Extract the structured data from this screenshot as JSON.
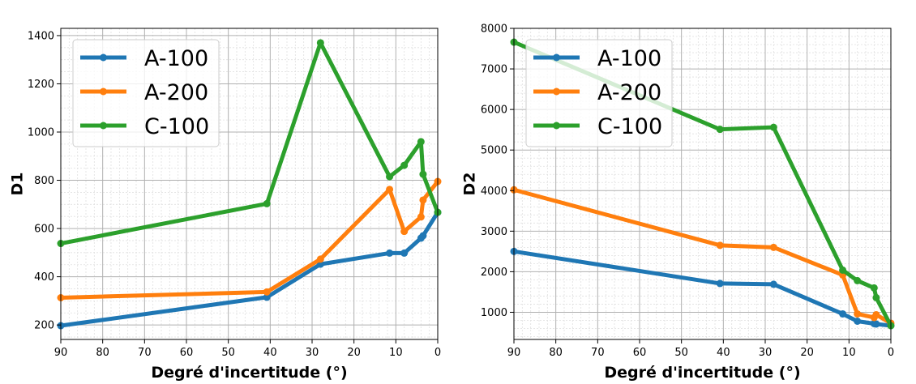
{
  "chart_data": [
    {
      "type": "line",
      "xlabel": "Degré d'incertitude (°)",
      "ylabel": "D1",
      "xlim": [
        90,
        0
      ],
      "ylim": [
        140,
        1430
      ],
      "x_inverted": true,
      "xticks": [
        "90",
        "80",
        "70",
        "60",
        "50",
        "40",
        "30",
        "20",
        "10",
        "0"
      ],
      "yticks": [
        "200",
        "400",
        "600",
        "800",
        "1000",
        "1200",
        "1400"
      ],
      "grid": true,
      "minor_grid": true,
      "legend_position": "upper-left",
      "series": [
        {
          "name": "A-100",
          "color": "#1f77b4",
          "x": [
            90,
            40.8,
            28,
            11.5,
            8,
            4,
            3.5,
            0
          ],
          "y": [
            197,
            315,
            452,
            498,
            498,
            560,
            570,
            667
          ]
        },
        {
          "name": "A-200",
          "color": "#ff7f0e",
          "x": [
            90,
            40.8,
            28,
            11.5,
            8,
            4,
            3.5,
            0
          ],
          "y": [
            313,
            337,
            473,
            762,
            588,
            648,
            718,
            795
          ]
        },
        {
          "name": "C-100",
          "color": "#2ca02c",
          "x": [
            90,
            40.8,
            28,
            11.5,
            8,
            4,
            3.5,
            0
          ],
          "y": [
            538,
            703,
            1370,
            815,
            862,
            960,
            825,
            667
          ]
        }
      ]
    },
    {
      "type": "line",
      "xlabel": "Degré d'incertitude (°)",
      "ylabel": "D2",
      "xlim": [
        90,
        0
      ],
      "ylim": [
        330,
        8000
      ],
      "x_inverted": true,
      "xticks": [
        "90",
        "80",
        "70",
        "60",
        "50",
        "40",
        "30",
        "20",
        "10",
        "0"
      ],
      "yticks": [
        "1000",
        "2000",
        "3000",
        "4000",
        "5000",
        "6000",
        "7000",
        "8000"
      ],
      "grid": true,
      "minor_grid": true,
      "legend_position": "upper-left",
      "series": [
        {
          "name": "A-100",
          "color": "#1f77b4",
          "x": [
            90,
            40.8,
            28,
            11.5,
            8,
            4,
            3.5,
            0
          ],
          "y": [
            2500,
            1710,
            1690,
            960,
            780,
            720,
            710,
            670
          ]
        },
        {
          "name": "A-200",
          "color": "#ff7f0e",
          "x": [
            90,
            40.8,
            28,
            11.5,
            8,
            4,
            3.5,
            0
          ],
          "y": [
            4020,
            2650,
            2600,
            1920,
            960,
            870,
            940,
            730
          ]
        },
        {
          "name": "C-100",
          "color": "#2ca02c",
          "x": [
            90,
            40.8,
            28,
            11.5,
            8,
            4,
            3.5,
            0
          ],
          "y": [
            7660,
            5510,
            5560,
            2040,
            1780,
            1600,
            1360,
            670
          ]
        }
      ]
    }
  ]
}
